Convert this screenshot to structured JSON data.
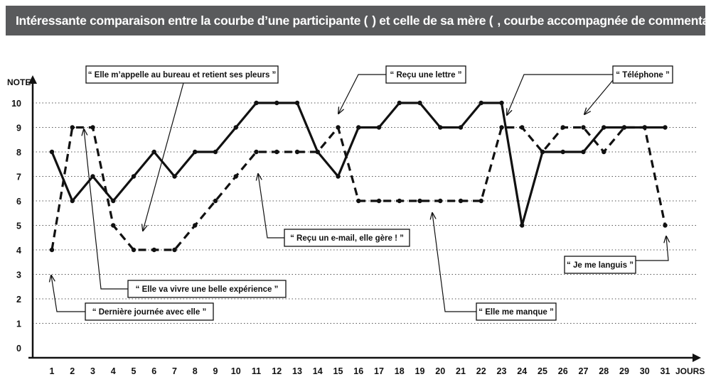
{
  "header": {
    "title_part1": "Intéressante comparaison entre la courbe d’une participante (",
    "title_part2": ") et celle de sa mère (",
    "title_part3": ", courbe accompagnée de commentaires)"
  },
  "chart_data": {
    "type": "line",
    "title": "Intéressante comparaison entre la courbe d’une participante ( — ) et celle de sa mère ( – – – , courbe accompagnée de commentaires)",
    "xlabel": "JOURS",
    "ylabel": "NOTE",
    "x": [
      1,
      2,
      3,
      4,
      5,
      6,
      7,
      8,
      9,
      10,
      11,
      12,
      13,
      14,
      15,
      16,
      17,
      18,
      19,
      20,
      21,
      22,
      23,
      24,
      25,
      26,
      27,
      28,
      29,
      30,
      31
    ],
    "xlim": [
      1,
      31
    ],
    "ylim": [
      0,
      10
    ],
    "yticks": [
      0,
      1,
      2,
      3,
      4,
      5,
      6,
      7,
      8,
      9,
      10
    ],
    "grid": "horizontal dotted",
    "series": [
      {
        "style": "solid",
        "color": "#111111",
        "values": [
          8,
          6,
          7,
          6,
          7,
          8,
          7,
          8,
          8,
          9,
          10,
          10,
          10,
          8,
          7,
          9,
          9,
          10,
          10,
          9,
          9,
          10,
          10,
          5,
          8,
          8,
          8,
          9,
          9,
          9,
          9
        ]
      },
      {
        "style": "dashed",
        "color": "#111111",
        "values": [
          4,
          9,
          9,
          5,
          4,
          4,
          4,
          5,
          6,
          7,
          8,
          8,
          8,
          8,
          9,
          6,
          6,
          6,
          6,
          6,
          6,
          6,
          9,
          9,
          8,
          9,
          9,
          8,
          9,
          9,
          5
        ]
      }
    ],
    "annotations": [
      {
        "text": "“ Elle m’appelle au bureau et retient ses pleurs ”",
        "day": 5,
        "series": 1
      },
      {
        "text": "“ Reçu une lettre ”",
        "day": 15,
        "series": 1
      },
      {
        "text": "“ Téléphone ”",
        "day": 23,
        "series": 1
      },
      {
        "text": "“ Téléphone ”",
        "day": 27,
        "series": 1
      },
      {
        "text": "“ Reçu un e-mail, elle gère ! ”",
        "day": 11,
        "series": 1
      },
      {
        "text": "“ Elle va vivre une belle expérience ”",
        "day": 2,
        "series": 1
      },
      {
        "text": "“ Dernière journée avec elle ”",
        "day": 1,
        "series": 1
      },
      {
        "text": "“ Elle me manque ”",
        "day": 19,
        "series": 1
      },
      {
        "text": "“ Je me languis ”",
        "day": 31,
        "series": 1
      }
    ]
  }
}
